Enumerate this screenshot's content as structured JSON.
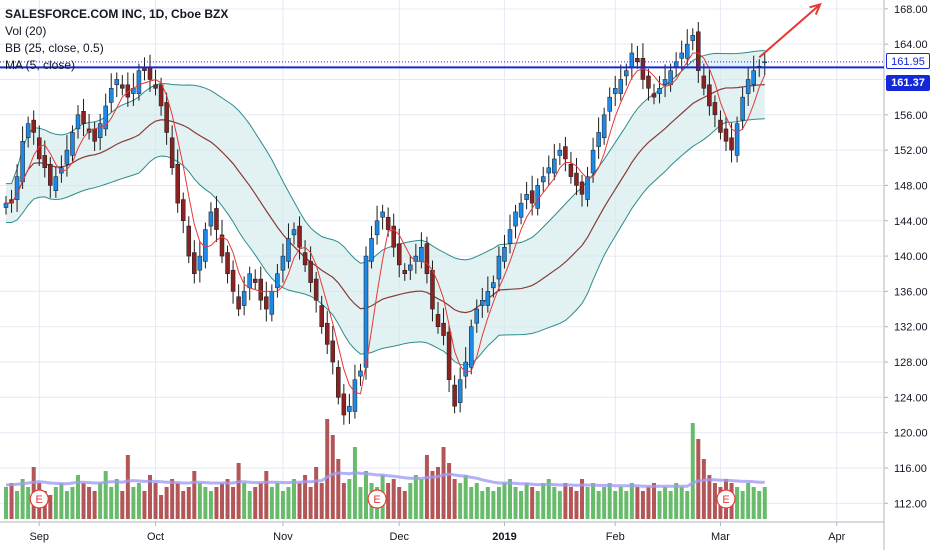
{
  "legend": {
    "title": "SALESFORCE.COM INC, 1D, Cboe BZX",
    "volume": "Vol (20)",
    "bollinger": "BB (25, close, 0.5)",
    "ma": "MA (5, close)"
  },
  "price_tags": {
    "last": "161.95",
    "line": "161.37"
  },
  "colors": {
    "up": "#2196f3",
    "down": "#d32f2f",
    "candle_body_up": "#1e88e5",
    "candle_body_down": "#8b2222",
    "vol_up": "#4caf50",
    "vol_down": "#a5383b",
    "bb_band": "#2d8c8c",
    "bb_fill": "#cfeaea",
    "bb_mid": "#8b3a3a",
    "ma": "#e53935",
    "hline": "#1428d8",
    "vol_ma": "#a09cf0",
    "arrow": "#e53935"
  },
  "chart_data": {
    "type": "candlestick",
    "ylim": [
      110,
      169
    ],
    "yticks": [
      112,
      116,
      120,
      124,
      128,
      132,
      136,
      140,
      144,
      148,
      152,
      156,
      160,
      164,
      168
    ],
    "xticks": [
      {
        "label": "Sep",
        "day": 6
      },
      {
        "label": "Oct",
        "day": 27
      },
      {
        "label": "Nov",
        "day": 50
      },
      {
        "label": "Dec",
        "day": 71
      },
      {
        "label": "2019",
        "day": 90
      },
      {
        "label": "Feb",
        "day": 110
      },
      {
        "label": "Mar",
        "day": 129
      },
      {
        "label": "Apr",
        "day": 150
      }
    ],
    "horizontal_line": 161.37,
    "earnings_markers": [
      {
        "day": 6,
        "label": "E"
      },
      {
        "day": 67,
        "label": "E"
      },
      {
        "day": 130,
        "label": "E"
      }
    ],
    "closes": [
      146,
      146,
      149,
      153,
      155,
      154,
      151,
      150,
      148,
      149,
      150,
      152,
      154,
      156,
      155,
      154,
      153,
      155,
      157,
      159,
      160,
      159,
      158,
      159,
      161,
      161,
      160,
      159,
      157,
      154,
      150,
      146,
      144,
      140,
      138,
      140,
      143,
      145,
      143,
      140,
      138,
      136,
      134,
      136,
      138,
      137,
      135,
      134,
      136,
      138,
      140,
      142,
      143,
      141,
      139,
      137,
      135,
      132,
      130,
      128,
      124,
      122,
      123,
      126,
      127,
      140,
      142,
      144,
      145,
      143,
      141,
      139,
      138,
      139,
      140,
      141,
      138,
      134,
      132,
      131,
      126,
      123,
      126,
      128,
      132,
      134,
      135,
      136,
      137,
      140,
      141,
      143,
      145,
      146,
      147,
      146,
      148,
      149,
      150,
      151,
      152,
      151,
      149,
      148,
      147,
      149,
      152,
      154,
      156,
      158,
      159,
      160,
      161,
      163,
      162,
      160,
      159,
      158,
      159,
      160,
      161,
      162,
      163,
      164,
      165,
      161,
      159,
      157,
      156,
      154,
      153,
      152,
      155,
      158,
      160,
      161,
      161.5,
      162
    ],
    "volumes": [
      0.8,
      0.9,
      0.7,
      1.0,
      0.8,
      1.3,
      0.9,
      0.7,
      0.6,
      0.8,
      0.9,
      0.7,
      0.8,
      1.1,
      0.9,
      0.8,
      0.7,
      0.9,
      1.2,
      0.8,
      1.0,
      0.7,
      1.6,
      0.8,
      0.9,
      0.7,
      1.1,
      0.9,
      0.6,
      0.8,
      1.0,
      0.9,
      0.7,
      0.8,
      1.2,
      0.9,
      0.8,
      0.7,
      0.8,
      0.9,
      1.0,
      0.8,
      1.4,
      0.9,
      0.7,
      0.8,
      0.9,
      1.2,
      0.8,
      0.9,
      0.7,
      0.8,
      1.0,
      0.9,
      1.1,
      0.8,
      1.3,
      0.9,
      2.5,
      2.1,
      1.5,
      0.9,
      1.0,
      1.8,
      0.8,
      1.2,
      0.9,
      0.8,
      1.1,
      0.9,
      1.0,
      0.8,
      0.7,
      0.9,
      1.1,
      1.0,
      1.6,
      1.2,
      1.3,
      1.8,
      1.4,
      1.0,
      0.9,
      1.1,
      0.8,
      0.9,
      0.7,
      0.8,
      0.7,
      0.8,
      0.9,
      1.0,
      0.8,
      0.7,
      0.9,
      0.8,
      0.7,
      0.9,
      1.0,
      0.8,
      0.7,
      0.9,
      0.8,
      0.7,
      1.0,
      0.8,
      0.9,
      0.7,
      0.8,
      0.9,
      0.7,
      0.8,
      0.7,
      0.9,
      0.8,
      0.7,
      0.8,
      0.9,
      0.7,
      0.8,
      0.7,
      0.9,
      0.8,
      0.7,
      2.4,
      2.0,
      1.5,
      1.1,
      0.9,
      0.8,
      1.0,
      0.9,
      0.8,
      0.7,
      0.9,
      0.8,
      0.7,
      0.8
    ],
    "vol_ma": [
      0.85,
      0.86,
      0.87,
      0.88,
      0.9,
      0.92,
      0.93,
      0.92,
      0.9,
      0.89,
      0.88,
      0.88,
      0.9,
      0.92,
      0.92,
      0.91,
      0.9,
      0.9,
      0.92,
      0.93,
      0.93,
      0.92,
      0.95,
      0.96,
      0.95,
      0.94,
      0.94,
      0.94,
      0.93,
      0.92,
      0.92,
      0.91,
      0.9,
      0.9,
      0.92,
      0.92,
      0.91,
      0.9,
      0.9,
      0.9,
      0.9,
      0.9,
      0.93,
      0.93,
      0.92,
      0.91,
      0.91,
      0.92,
      0.92,
      0.92,
      0.91,
      0.91,
      0.92,
      0.92,
      0.93,
      0.93,
      0.95,
      0.96,
      1.05,
      1.12,
      1.15,
      1.14,
      1.13,
      1.16,
      1.14,
      1.13,
      1.12,
      1.1,
      1.1,
      1.08,
      1.07,
      1.05,
      1.03,
      1.02,
      1.02,
      1.01,
      1.04,
      1.05,
      1.06,
      1.1,
      1.12,
      1.1,
      1.08,
      1.07,
      1.04,
      1.02,
      0.98,
      0.95,
      0.92,
      0.9,
      0.9,
      0.9,
      0.89,
      0.88,
      0.88,
      0.87,
      0.86,
      0.86,
      0.87,
      0.86,
      0.85,
      0.85,
      0.85,
      0.84,
      0.85,
      0.85,
      0.85,
      0.84,
      0.84,
      0.84,
      0.83,
      0.83,
      0.83,
      0.83,
      0.83,
      0.82,
      0.82,
      0.82,
      0.82,
      0.82,
      0.82,
      0.82,
      0.82,
      0.82,
      0.9,
      0.95,
      0.97,
      0.98,
      0.98,
      0.97,
      0.97,
      0.96,
      0.95,
      0.94,
      0.94,
      0.93,
      0.92,
      0.92
    ],
    "annotation": {
      "type": "arrow",
      "from": {
        "day": 136,
        "price": 162.5
      },
      "to": {
        "day": 147,
        "price": 168.5
      }
    }
  }
}
